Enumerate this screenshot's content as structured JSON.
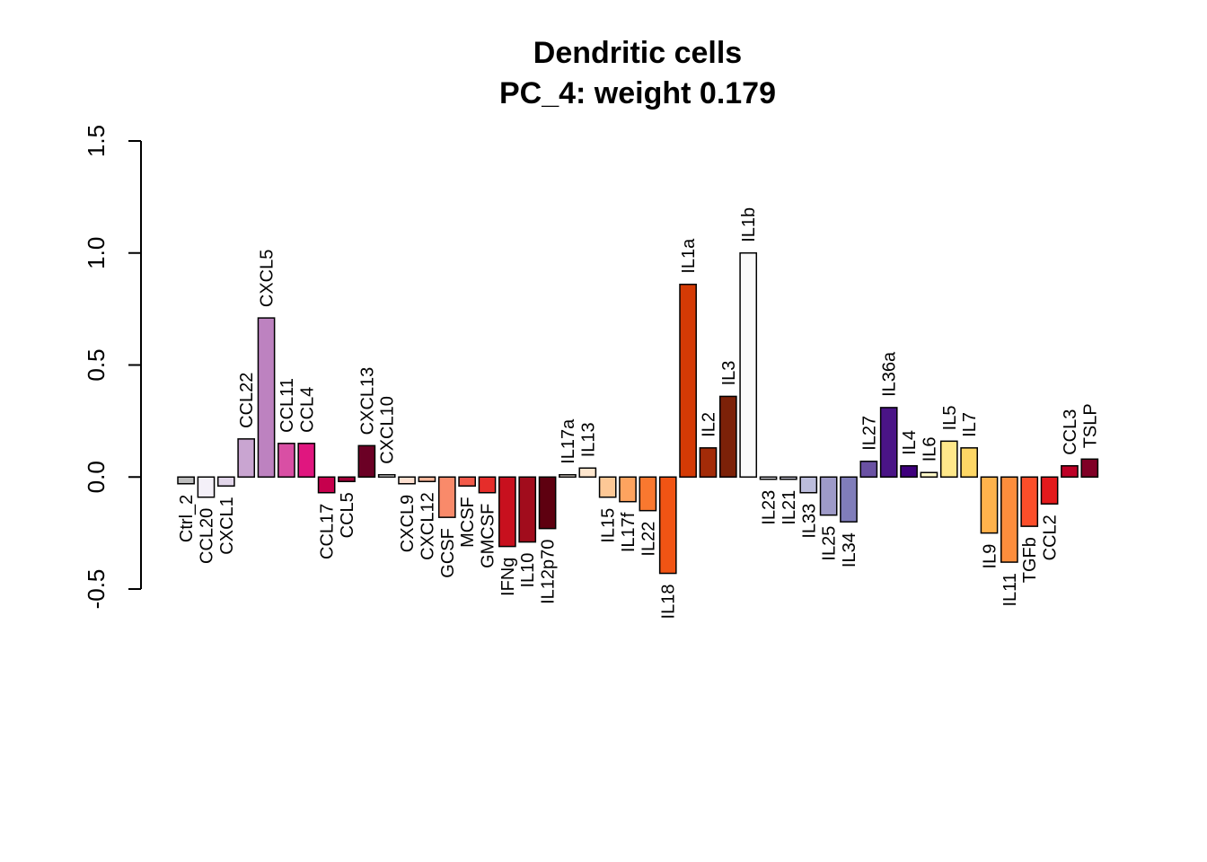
{
  "chart_data": {
    "type": "bar",
    "title": "Dendritic cells",
    "subtitle": "PC_4: weight 0.179",
    "xlabel": "",
    "ylabel": "",
    "ylim": [
      -0.5,
      1.5
    ],
    "yticks": [
      "-0.5",
      "0.0",
      "0.5",
      "1.0",
      "1.5"
    ],
    "grid": false,
    "legend": "none",
    "bars": [
      {
        "label": "Ctrl_2",
        "value": -0.03,
        "color": "#bdbdbd"
      },
      {
        "label": "CCL20",
        "value": -0.09,
        "color": "#f4f0f8"
      },
      {
        "label": "CXCL1",
        "value": -0.04,
        "color": "#e2d6ea"
      },
      {
        "label": "CCL22",
        "value": 0.17,
        "color": "#c9a5d1"
      },
      {
        "label": "CXCL5",
        "value": 0.71,
        "color": "#bd82c0"
      },
      {
        "label": "CCL11",
        "value": 0.15,
        "color": "#d94fa4"
      },
      {
        "label": "CCL4",
        "value": 0.15,
        "color": "#e0167f"
      },
      {
        "label": "CCL17",
        "value": -0.07,
        "color": "#c6004d"
      },
      {
        "label": "CCL5",
        "value": -0.02,
        "color": "#9f0036"
      },
      {
        "label": "CXCL13",
        "value": 0.14,
        "color": "#6b0025"
      },
      {
        "label": "CXCL10",
        "value": 0.01,
        "color": "#ffffff"
      },
      {
        "label": "CXCL9",
        "value": -0.03,
        "color": "#fde0d0"
      },
      {
        "label": "CXCL12",
        "value": -0.02,
        "color": "#fbb69a"
      },
      {
        "label": "GCSF",
        "value": -0.18,
        "color": "#f98a6a"
      },
      {
        "label": "MCSF",
        "value": -0.04,
        "color": "#f35a4a"
      },
      {
        "label": "GMCSF",
        "value": -0.07,
        "color": "#e52d2a"
      },
      {
        "label": "IFNg",
        "value": -0.31,
        "color": "#c8101e"
      },
      {
        "label": "IL10",
        "value": -0.29,
        "color": "#a10c1c"
      },
      {
        "label": "IL12p70",
        "value": -0.23,
        "color": "#5e0010"
      },
      {
        "label": "IL17a",
        "value": 0.01,
        "color": "#fff6ec"
      },
      {
        "label": "IL13",
        "value": 0.04,
        "color": "#fee6ce"
      },
      {
        "label": "IL15",
        "value": -0.09,
        "color": "#fdc896"
      },
      {
        "label": "IL17f",
        "value": -0.11,
        "color": "#fda35f"
      },
      {
        "label": "IL22",
        "value": -0.15,
        "color": "#f9782f"
      },
      {
        "label": "IL18",
        "value": -0.43,
        "color": "#f05414"
      },
      {
        "label": "IL1a",
        "value": 0.86,
        "color": "#d43a05"
      },
      {
        "label": "IL2",
        "value": 0.13,
        "color": "#a32b08"
      },
      {
        "label": "IL3",
        "value": 0.36,
        "color": "#7c2108"
      },
      {
        "label": "IL1b",
        "value": 1.0,
        "color": "#fafafa"
      },
      {
        "label": "IL23",
        "value": -0.01,
        "color": "#ececf4"
      },
      {
        "label": "IL21",
        "value": -0.01,
        "color": "#dadaeb"
      },
      {
        "label": "IL33",
        "value": -0.07,
        "color": "#bcbddc"
      },
      {
        "label": "IL25",
        "value": -0.17,
        "color": "#9e9ac8"
      },
      {
        "label": "IL34",
        "value": -0.2,
        "color": "#807dba"
      },
      {
        "label": "IL27",
        "value": 0.07,
        "color": "#6a51a3"
      },
      {
        "label": "IL36a",
        "value": 0.31,
        "color": "#4a1486"
      },
      {
        "label": "IL4",
        "value": 0.05,
        "color": "#3f007d"
      },
      {
        "label": "IL6",
        "value": 0.02,
        "color": "#fff8c8"
      },
      {
        "label": "IL5",
        "value": 0.16,
        "color": "#ffe88a"
      },
      {
        "label": "IL7",
        "value": 0.13,
        "color": "#fed765"
      },
      {
        "label": "IL9",
        "value": -0.25,
        "color": "#feb24c"
      },
      {
        "label": "IL11",
        "value": -0.38,
        "color": "#fd8d3c"
      },
      {
        "label": "TGFb",
        "value": -0.22,
        "color": "#fc4e2a"
      },
      {
        "label": "CCL2",
        "value": -0.12,
        "color": "#e31a1c"
      },
      {
        "label": "CCL3",
        "value": 0.05,
        "color": "#bd0026"
      },
      {
        "label": "TSLP",
        "value": 0.08,
        "color": "#800026"
      }
    ]
  }
}
